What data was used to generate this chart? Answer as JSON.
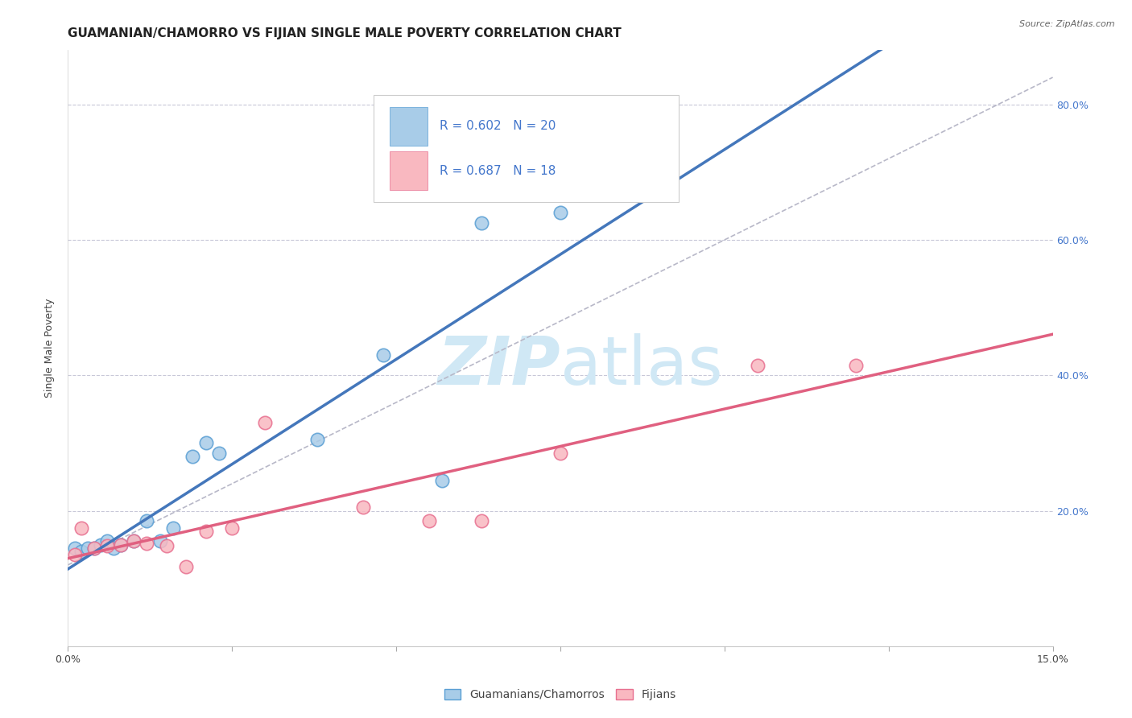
{
  "title": "GUAMANIAN/CHAMORRO VS FIJIAN SINGLE MALE POVERTY CORRELATION CHART",
  "source": "Source: ZipAtlas.com",
  "ylabel": "Single Male Poverty",
  "xlim": [
    0.0,
    0.15
  ],
  "ylim": [
    0.0,
    0.88
  ],
  "yticks": [
    0.0,
    0.2,
    0.4,
    0.6,
    0.8
  ],
  "ytick_labels": [
    "",
    "20.0%",
    "40.0%",
    "60.0%",
    "80.0%"
  ],
  "guamanian_x": [
    0.001,
    0.002,
    0.003,
    0.004,
    0.005,
    0.006,
    0.007,
    0.008,
    0.01,
    0.012,
    0.014,
    0.016,
    0.019,
    0.021,
    0.023,
    0.038,
    0.048,
    0.057,
    0.063,
    0.075
  ],
  "guamanian_y": [
    0.145,
    0.14,
    0.145,
    0.145,
    0.15,
    0.155,
    0.145,
    0.15,
    0.155,
    0.185,
    0.155,
    0.175,
    0.28,
    0.3,
    0.285,
    0.305,
    0.43,
    0.245,
    0.625,
    0.64
  ],
  "fijian_x": [
    0.001,
    0.002,
    0.004,
    0.006,
    0.008,
    0.01,
    0.012,
    0.015,
    0.018,
    0.021,
    0.025,
    0.03,
    0.045,
    0.055,
    0.063,
    0.075,
    0.105,
    0.12
  ],
  "fijian_y": [
    0.135,
    0.175,
    0.145,
    0.148,
    0.15,
    0.155,
    0.152,
    0.148,
    0.118,
    0.17,
    0.175,
    0.33,
    0.205,
    0.185,
    0.185,
    0.285,
    0.415,
    0.415
  ],
  "guamanian_color": "#a8cce8",
  "fijian_color": "#f9b8c0",
  "guamanian_edge_color": "#5a9fd4",
  "fijian_edge_color": "#e87090",
  "guamanian_line_color": "#4477bb",
  "fijian_line_color": "#e06080",
  "ref_line_color": "#b8b8c8",
  "background_color": "#ffffff",
  "grid_color": "#c8c8d8",
  "watermark_color": "#d0e8f5",
  "title_fontsize": 11,
  "axis_label_fontsize": 9,
  "legend_fontsize": 11,
  "tick_fontsize": 9,
  "legend_text_color": "#4477cc",
  "legend_r_color": "#333333"
}
